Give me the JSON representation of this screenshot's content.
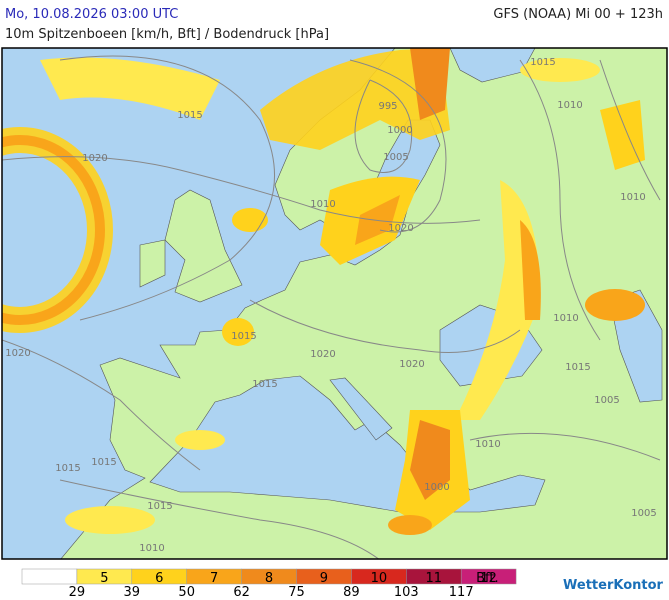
{
  "header": {
    "datetime": "Mo, 10.08.2026 03:00 UTC",
    "model": "GFS (NOAA) Mi 00 + 123h",
    "subtitle": "10m Spitzenboeen [km/h, Bft] / Bodendruck [hPa]"
  },
  "isobar_labels": [
    "1015",
    "1010",
    "1010",
    "995",
    "1000",
    "1005",
    "1015",
    "1020",
    "1010",
    "1020",
    "1010",
    "1015",
    "1020",
    "1020",
    "1015",
    "1020",
    "1015",
    "1005",
    "1010",
    "1015",
    "1015",
    "1015",
    "1010",
    "1005",
    "1000"
  ],
  "legend": {
    "unit": "Bft.",
    "bft": [
      "5",
      "6",
      "7",
      "8",
      "9",
      "10",
      "11",
      "12"
    ],
    "kmh": [
      "29",
      "39",
      "50",
      "62",
      "75",
      "89",
      "103",
      "117"
    ],
    "colors": [
      "#ffffff",
      "#ffe94f",
      "#ffd21c",
      "#f9a51a",
      "#f08a1c",
      "#e8601c",
      "#d8281e",
      "#a8143c",
      "#c81f78"
    ]
  },
  "logo": "WetterKontor"
}
